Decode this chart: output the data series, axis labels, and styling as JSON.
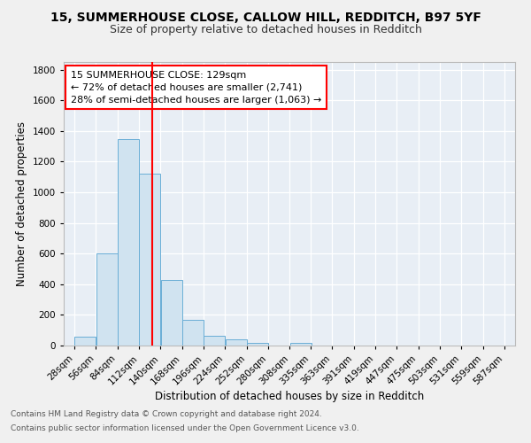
{
  "title_line1": "15, SUMMERHOUSE CLOSE, CALLOW HILL, REDDITCH, B97 5YF",
  "title_line2": "Size of property relative to detached houses in Redditch",
  "xlabel": "Distribution of detached houses by size in Redditch",
  "ylabel": "Number of detached properties",
  "annotation_title": "15 SUMMERHOUSE CLOSE: 129sqm",
  "annotation_line2": "← 72% of detached houses are smaller (2,741)",
  "annotation_line3": "28% of semi-detached houses are larger (1,063) →",
  "footnote1": "Contains HM Land Registry data © Crown copyright and database right 2024.",
  "footnote2": "Contains public sector information licensed under the Open Government Licence v3.0.",
  "bar_color": "#d0e3f0",
  "bar_edge_color": "#6aaed6",
  "bg_color": "#e8eef5",
  "grid_color": "#ffffff",
  "fig_bg_color": "#f0f0f0",
  "red_line_x": 129,
  "bin_edges": [
    28,
    56,
    84,
    112,
    140,
    168,
    196,
    224,
    252,
    280,
    308,
    335,
    363,
    391,
    419,
    447,
    475,
    503,
    531,
    559,
    587
  ],
  "bin_counts": [
    60,
    600,
    1345,
    1120,
    425,
    170,
    65,
    38,
    20,
    0,
    20,
    0,
    0,
    0,
    0,
    0,
    0,
    0,
    0,
    0
  ],
  "ylim": [
    0,
    1850
  ],
  "yticks": [
    0,
    200,
    400,
    600,
    800,
    1000,
    1200,
    1400,
    1600,
    1800
  ],
  "title_fontsize": 10,
  "subtitle_fontsize": 9,
  "axis_label_fontsize": 8.5,
  "tick_fontsize": 7.5,
  "annotation_fontsize": 8,
  "footnote_fontsize": 6.5
}
